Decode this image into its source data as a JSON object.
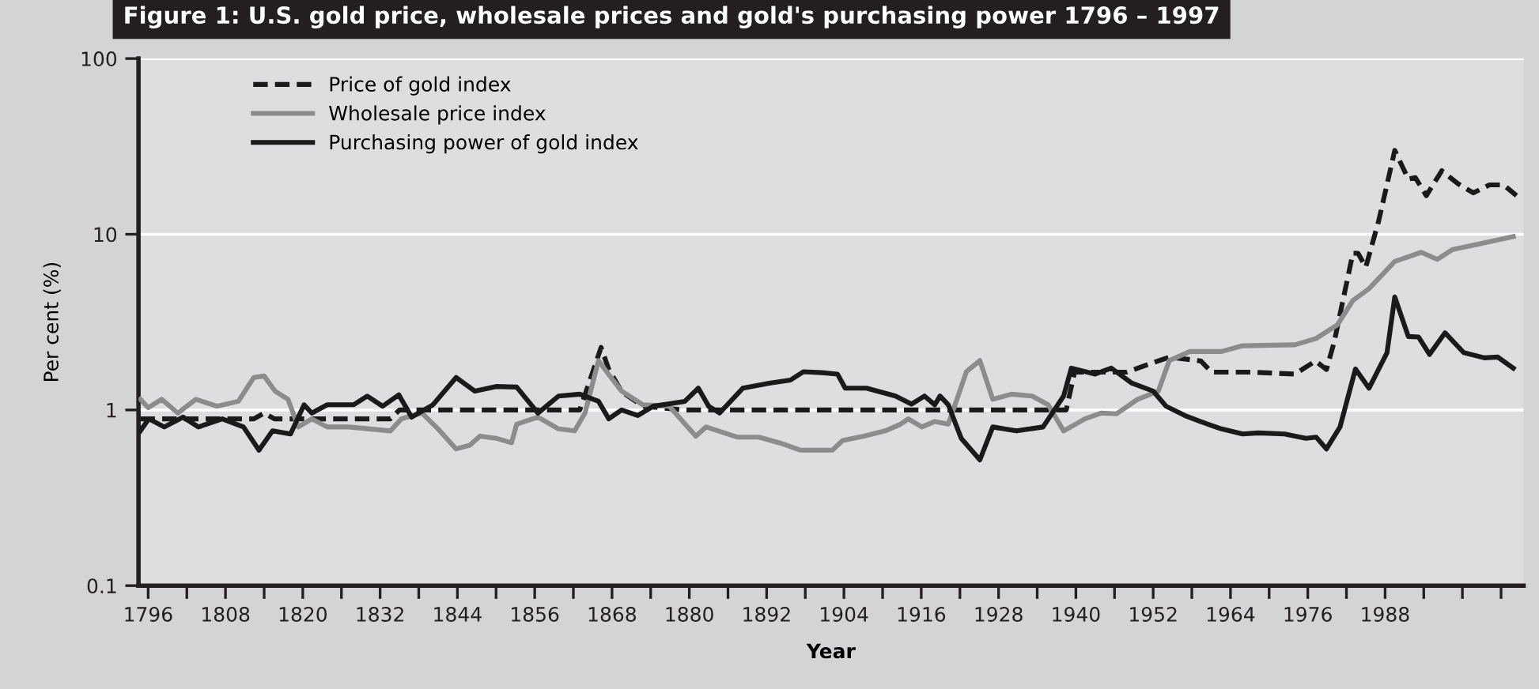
{
  "chart_data": {
    "type": "line",
    "title": "Figure 1: U.S. gold price, wholesale prices and gold's purchasing power 1796 – 1997",
    "xlabel": "Year",
    "ylabel": "Per cent (%)",
    "log": "y",
    "grid": "y",
    "legend": "top left",
    "xlim": [
      1794.5,
      2009.5
    ],
    "ylim": [
      0.1,
      100
    ],
    "yticks": [
      0.1,
      1,
      10,
      100
    ],
    "xticks": [
      1796,
      {
        "value": 1802,
        "label": null
      },
      1808,
      {
        "value": 1814,
        "label": null
      },
      1820,
      {
        "value": 1826,
        "label": null
      },
      1832,
      {
        "value": 1838,
        "label": null
      },
      1844,
      {
        "value": 1850,
        "label": null
      },
      1856,
      {
        "value": 1862,
        "label": null
      },
      1868,
      {
        "value": 1874,
        "label": null
      },
      1880,
      {
        "value": 1886,
        "label": null
      },
      1892,
      {
        "value": 1898,
        "label": null
      },
      1904,
      {
        "value": 1910,
        "label": null
      },
      1916,
      {
        "value": 1922,
        "label": null
      },
      1928,
      {
        "value": 1934,
        "label": null
      },
      1940,
      {
        "value": 1946,
        "label": null
      },
      1952,
      {
        "value": 1958,
        "label": null
      },
      1964,
      {
        "value": 1970,
        "label": null
      },
      1976,
      {
        "value": 1982,
        "label": null
      },
      1988,
      {
        "value": 1994,
        "label": null
      },
      {
        "value": 2000,
        "label": null
      },
      {
        "value": 2006,
        "label": null
      }
    ],
    "series": [
      {
        "name": "Price of gold index",
        "color": "#1a1a1a",
        "line_style": "dashed",
        "x": [
          1794.8,
          1812.4,
          1814,
          1815.6,
          1833.6,
          1835,
          1863,
          1866.3,
          1867.5,
          1869.5,
          1872.8,
          1879.3,
          1938.5,
          1939.8,
          1947.8,
          1954.5,
          1959.4,
          1961.1,
          1967.4,
          1974,
          1977.2,
          1978.9,
          1980.1,
          1983,
          1983.8,
          1985,
          1987,
          1989.5,
          1991.6,
          1992.7,
          1994.4,
          1996.8,
          1999.3,
          2001.7,
          2004.2,
          2006.4,
          2008.4
        ],
        "values": [
          0.89,
          0.89,
          0.96,
          0.89,
          0.89,
          1.0,
          1.0,
          2.27,
          1.7,
          1.27,
          1.05,
          1.0,
          1.0,
          1.64,
          1.64,
          2.0,
          1.9,
          1.64,
          1.64,
          1.6,
          1.9,
          1.7,
          2.44,
          7.8,
          7.8,
          6.5,
          11.9,
          30,
          20.6,
          21,
          16.6,
          23,
          19.4,
          17.2,
          19.1,
          19.1,
          16.6
        ]
      },
      {
        "name": "Wholesale price index",
        "color": "#8c8c8c",
        "line_style": "solid",
        "x": [
          1794.8,
          1796,
          1798.1,
          1800.6,
          1803.4,
          1806.7,
          1810,
          1812.4,
          1814,
          1815.7,
          1817.7,
          1819.3,
          1821.4,
          1823.8,
          1827.1,
          1830.4,
          1833.6,
          1835.3,
          1838.5,
          1841,
          1843.8,
          1845.9,
          1847.5,
          1850,
          1852.4,
          1853.2,
          1856.5,
          1859.7,
          1862.2,
          1863.8,
          1865.9,
          1867.5,
          1869.5,
          1872.8,
          1876.9,
          1881,
          1882.6,
          1887.5,
          1890.8,
          1894,
          1897.3,
          1902.2,
          1903.8,
          1907.1,
          1910.4,
          1912.8,
          1914,
          1916.1,
          1918.1,
          1920.2,
          1921.4,
          1923,
          1925.1,
          1927.1,
          1930,
          1933.2,
          1935.7,
          1938.1,
          1941.4,
          1943.9,
          1946.3,
          1949.6,
          1952.8,
          1954.5,
          1957.7,
          1962.6,
          1965.9,
          1974,
          1977.3,
          1980.6,
          1983,
          1985.5,
          1989.5,
          1993.6,
          1996.1,
          1998.5,
          2002.6,
          2007.9
        ],
        "values": [
          1.15,
          1.03,
          1.15,
          0.96,
          1.15,
          1.05,
          1.12,
          1.53,
          1.56,
          1.28,
          1.15,
          0.8,
          0.89,
          0.8,
          0.8,
          0.78,
          0.76,
          0.89,
          0.96,
          0.78,
          0.6,
          0.63,
          0.71,
          0.69,
          0.65,
          0.83,
          0.91,
          0.78,
          0.76,
          0.96,
          1.91,
          1.59,
          1.28,
          1.07,
          1.05,
          0.71,
          0.8,
          0.7,
          0.7,
          0.65,
          0.59,
          0.59,
          0.67,
          0.71,
          0.76,
          0.83,
          0.89,
          0.8,
          0.86,
          0.83,
          1.11,
          1.65,
          1.91,
          1.15,
          1.23,
          1.2,
          1.07,
          0.76,
          0.89,
          0.96,
          0.95,
          1.15,
          1.28,
          1.91,
          2.15,
          2.15,
          2.32,
          2.35,
          2.55,
          3.05,
          4.2,
          4.9,
          7.0,
          7.9,
          7.2,
          8.2,
          8.8,
          9.7
        ]
      },
      {
        "name": "Purchasing power of gold index",
        "color": "#1a1a1a",
        "line_style": "solid",
        "x": [
          1794.8,
          1796.1,
          1798.5,
          1801.4,
          1803.8,
          1807.5,
          1810.8,
          1813.2,
          1815.3,
          1818.1,
          1820.2,
          1821.4,
          1823.8,
          1827.9,
          1830,
          1832.4,
          1834.9,
          1836.9,
          1840.2,
          1843.8,
          1846.7,
          1850,
          1853.2,
          1856.5,
          1859.7,
          1863,
          1865.9,
          1867.5,
          1869.5,
          1872,
          1874.4,
          1879.3,
          1881.4,
          1883,
          1884.7,
          1888.3,
          1892.4,
          1895.7,
          1897.7,
          1900.6,
          1903,
          1904.2,
          1907.5,
          1912,
          1914.5,
          1916.5,
          1918.1,
          1918.9,
          1920.2,
          1922.2,
          1925.1,
          1927.1,
          1930.8,
          1934.9,
          1938.1,
          1939.3,
          1943,
          1945.5,
          1948.7,
          1952,
          1954,
          1956.9,
          1959.3,
          1962.6,
          1965.9,
          1968.3,
          1972.4,
          1975.7,
          1977.3,
          1978.9,
          1981,
          1983.4,
          1985.5,
          1988.3,
          1989.5,
          1991.6,
          1993.2,
          1994.9,
          1997.3,
          2000.2,
          2003.4,
          2005.5,
          2007.9
        ],
        "values": [
          0.76,
          0.89,
          0.8,
          0.91,
          0.8,
          0.89,
          0.8,
          0.59,
          0.76,
          0.73,
          1.07,
          0.96,
          1.07,
          1.07,
          1.2,
          1.05,
          1.22,
          0.91,
          1.07,
          1.53,
          1.28,
          1.36,
          1.35,
          0.96,
          1.2,
          1.23,
          1.12,
          0.89,
          1.0,
          0.93,
          1.05,
          1.12,
          1.33,
          1.05,
          0.96,
          1.33,
          1.42,
          1.48,
          1.65,
          1.63,
          1.6,
          1.33,
          1.33,
          1.2,
          1.08,
          1.2,
          1.07,
          1.2,
          1.07,
          0.69,
          0.52,
          0.8,
          0.76,
          0.8,
          1.2,
          1.73,
          1.6,
          1.73,
          1.42,
          1.28,
          1.05,
          0.93,
          0.86,
          0.78,
          0.73,
          0.74,
          0.73,
          0.69,
          0.7,
          0.6,
          0.8,
          1.71,
          1.33,
          2.12,
          4.4,
          2.62,
          2.6,
          2.07,
          2.75,
          2.12,
          1.98,
          2.0,
          1.73
        ]
      }
    ]
  }
}
